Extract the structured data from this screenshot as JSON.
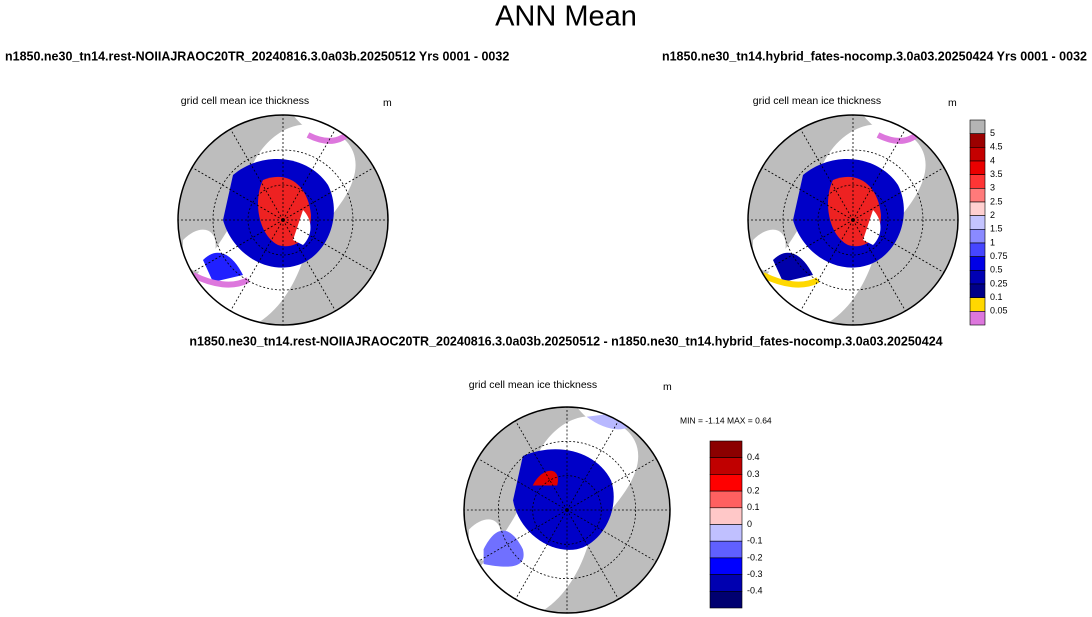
{
  "title": "ANN Mean",
  "panels": [
    {
      "title": "n1850.ne30_tn14.rest-NOIIAJRAOC20TR_20240816.3.0a03b.20250512  Yrs 0001 - 0032",
      "subtitle": "grid cell mean ice thickness",
      "units": "m"
    },
    {
      "title": "n1850.ne30_tn14.hybrid_fates-nocomp.3.0a03.20250424  Yrs 0001 - 0032",
      "subtitle": "grid cell mean ice thickness",
      "units": "m"
    },
    {
      "title": "n1850.ne30_tn14.rest-NOIIAJRAOC20TR_20240816.3.0a03b.20250512 - n1850.ne30_tn14.hybrid_fates-nocomp.3.0a03.20250424",
      "subtitle": "grid cell mean ice thickness",
      "units": "m",
      "stats": "MIN =  -1.14 MAX =  0.64"
    }
  ],
  "colorbars": [
    {
      "labels": [
        "5",
        "4.5",
        "4",
        "3.5",
        "3",
        "2.5",
        "2",
        "1.5",
        "1",
        "0.75",
        "0.5",
        "0.25",
        "0.1",
        "0.05"
      ],
      "colors": [
        "#b4b4b4",
        "#9b0000",
        "#c40000",
        "#ea0000",
        "#ff3535",
        "#ff7a7a",
        "#ffd0d0",
        "#ffffff",
        "#c4c4ff",
        "#8a8aff",
        "#4646ff",
        "#0000e6",
        "#0000b4",
        "#000088",
        "#ffd800",
        "#dd77dd"
      ]
    },
    {
      "labels": [
        "0.4",
        "0.3",
        "0.2",
        "0.1",
        "0",
        "-0.1",
        "-0.2",
        "-0.3",
        "-0.4"
      ],
      "colors": [
        "#8b0000",
        "#c00000",
        "#ff0000",
        "#ff6060",
        "#ffc8c8",
        "#c0c0ff",
        "#6060ff",
        "#0000ff",
        "#0000b0",
        "#000070"
      ]
    }
  ]
}
